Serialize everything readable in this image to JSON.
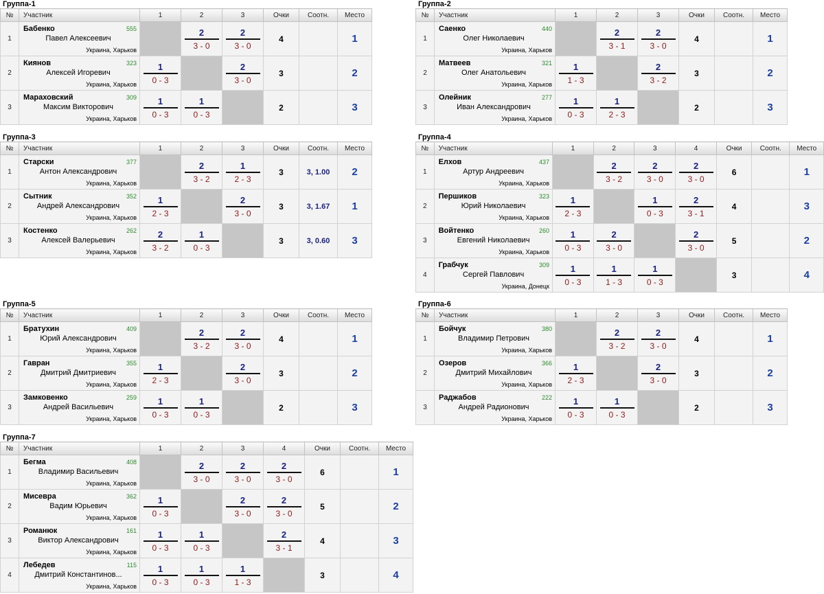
{
  "headers": {
    "num": "№",
    "participant": "Участник",
    "points": "Очки",
    "ratio": "Соотн.",
    "place": "Место"
  },
  "groups": [
    {
      "title": "Группа-1",
      "cols": [
        "1",
        "2",
        "3"
      ],
      "rows": [
        {
          "num": "1",
          "surname": "Бабенко",
          "firstname": "Павел Алексеевич",
          "rating": "555",
          "location": "Украина, Харьков",
          "results": [
            null,
            {
              "w": "2",
              "s": "3 - 0"
            },
            {
              "w": "2",
              "s": "3 - 0"
            }
          ],
          "points": "4",
          "ratio": "",
          "place": "1"
        },
        {
          "num": "2",
          "surname": "Киянов",
          "firstname": "Алексей Игоревич",
          "rating": "323",
          "location": "Украина, Харьков",
          "results": [
            {
              "w": "1",
              "s": "0 - 3"
            },
            null,
            {
              "w": "2",
              "s": "3 - 0"
            }
          ],
          "points": "3",
          "ratio": "",
          "place": "2"
        },
        {
          "num": "3",
          "surname": "Мараховский",
          "firstname": "Максим Викторович",
          "rating": "309",
          "location": "Украина, Харьков",
          "results": [
            {
              "w": "1",
              "s": "0 - 3"
            },
            {
              "w": "1",
              "s": "0 - 3"
            },
            null
          ],
          "points": "2",
          "ratio": "",
          "place": "3"
        }
      ]
    },
    {
      "title": "Группа-2",
      "cols": [
        "1",
        "2",
        "3"
      ],
      "rows": [
        {
          "num": "1",
          "surname": "Саенко",
          "firstname": "Олег Николаевич",
          "rating": "440",
          "location": "Украина, Харьков",
          "results": [
            null,
            {
              "w": "2",
              "s": "3 - 1"
            },
            {
              "w": "2",
              "s": "3 - 0"
            }
          ],
          "points": "4",
          "ratio": "",
          "place": "1"
        },
        {
          "num": "2",
          "surname": "Матвеев",
          "firstname": "Олег Анатольевич",
          "rating": "321",
          "location": "Украина, Харьков",
          "results": [
            {
              "w": "1",
              "s": "1 - 3"
            },
            null,
            {
              "w": "2",
              "s": "3 - 2"
            }
          ],
          "points": "3",
          "ratio": "",
          "place": "2"
        },
        {
          "num": "3",
          "surname": "Олейник",
          "firstname": "Иван Александрович",
          "rating": "277",
          "location": "Украина, Харьков",
          "results": [
            {
              "w": "1",
              "s": "0 - 3"
            },
            {
              "w": "1",
              "s": "2 - 3"
            },
            null
          ],
          "points": "2",
          "ratio": "",
          "place": "3"
        }
      ]
    },
    {
      "title": "Группа-3",
      "cols": [
        "1",
        "2",
        "3"
      ],
      "rows": [
        {
          "num": "1",
          "surname": "Старски",
          "firstname": "Антон Александрович",
          "rating": "377",
          "location": "Украина, Харьков",
          "results": [
            null,
            {
              "w": "2",
              "s": "3 - 2"
            },
            {
              "w": "1",
              "s": "2 - 3"
            }
          ],
          "points": "3",
          "ratio": "3, 1.00",
          "place": "2"
        },
        {
          "num": "2",
          "surname": "Сытник",
          "firstname": "Андрей Александрович",
          "rating": "352",
          "location": "Украина, Харьков",
          "results": [
            {
              "w": "1",
              "s": "2 - 3"
            },
            null,
            {
              "w": "2",
              "s": "3 - 0"
            }
          ],
          "points": "3",
          "ratio": "3, 1.67",
          "place": "1"
        },
        {
          "num": "3",
          "surname": "Костенко",
          "firstname": "Алексей Валерьевич",
          "rating": "262",
          "location": "Украина, Харьков",
          "results": [
            {
              "w": "2",
              "s": "3 - 2"
            },
            {
              "w": "1",
              "s": "0 - 3"
            },
            null
          ],
          "points": "3",
          "ratio": "3, 0.60",
          "place": "3"
        }
      ]
    },
    {
      "title": "Группа-4",
      "cols": [
        "1",
        "2",
        "3",
        "4"
      ],
      "rows": [
        {
          "num": "1",
          "surname": "Елхов",
          "firstname": "Артур Андреевич",
          "rating": "437",
          "location": "Украина, Харьков",
          "results": [
            null,
            {
              "w": "2",
              "s": "3 - 2"
            },
            {
              "w": "2",
              "s": "3 - 0"
            },
            {
              "w": "2",
              "s": "3 - 0"
            }
          ],
          "points": "6",
          "ratio": "",
          "place": "1"
        },
        {
          "num": "2",
          "surname": "Першиков",
          "firstname": "Юрий Николаевич",
          "rating": "323",
          "location": "Украина, Харьков",
          "results": [
            {
              "w": "1",
              "s": "2 - 3"
            },
            null,
            {
              "w": "1",
              "s": "0 - 3"
            },
            {
              "w": "2",
              "s": "3 - 1"
            }
          ],
          "points": "4",
          "ratio": "",
          "place": "3"
        },
        {
          "num": "3",
          "surname": "Войтенко",
          "firstname": "Евгений Николаевич",
          "rating": "260",
          "location": "Украина, Харьков",
          "results": [
            {
              "w": "1",
              "s": "0 - 3"
            },
            {
              "w": "2",
              "s": "3 - 0"
            },
            null,
            {
              "w": "2",
              "s": "3 - 0"
            }
          ],
          "points": "5",
          "ratio": "",
          "place": "2"
        },
        {
          "num": "4",
          "surname": "Грабчук",
          "firstname": "Сергей Павлович",
          "rating": "309",
          "location": "Украина, Донецк",
          "results": [
            {
              "w": "1",
              "s": "0 - 3"
            },
            {
              "w": "1",
              "s": "1 - 3"
            },
            {
              "w": "1",
              "s": "0 - 3"
            },
            null
          ],
          "points": "3",
          "ratio": "",
          "place": "4"
        }
      ]
    },
    {
      "title": "Группа-5",
      "cols": [
        "1",
        "2",
        "3"
      ],
      "rows": [
        {
          "num": "1",
          "surname": "Братухин",
          "firstname": "Юрий Александрович",
          "rating": "409",
          "location": "Украина, Харьков",
          "results": [
            null,
            {
              "w": "2",
              "s": "3 - 2"
            },
            {
              "w": "2",
              "s": "3 - 0"
            }
          ],
          "points": "4",
          "ratio": "",
          "place": "1"
        },
        {
          "num": "2",
          "surname": "Гавран",
          "firstname": "Дмитрий Дмитриевич",
          "rating": "355",
          "location": "Украина, Харьков",
          "results": [
            {
              "w": "1",
              "s": "2 - 3"
            },
            null,
            {
              "w": "2",
              "s": "3 - 0"
            }
          ],
          "points": "3",
          "ratio": "",
          "place": "2"
        },
        {
          "num": "3",
          "surname": "Замковенко",
          "firstname": "Андрей Васильевич",
          "rating": "259",
          "location": "Украина, Харьков",
          "results": [
            {
              "w": "1",
              "s": "0 - 3"
            },
            {
              "w": "1",
              "s": "0 - 3"
            },
            null
          ],
          "points": "2",
          "ratio": "",
          "place": "3"
        }
      ]
    },
    {
      "title": "Группа-6",
      "cols": [
        "1",
        "2",
        "3"
      ],
      "rows": [
        {
          "num": "1",
          "surname": "Бойчук",
          "firstname": "Владимир Петрович",
          "rating": "380",
          "location": "Украина, Харьков",
          "results": [
            null,
            {
              "w": "2",
              "s": "3 - 2"
            },
            {
              "w": "2",
              "s": "3 - 0"
            }
          ],
          "points": "4",
          "ratio": "",
          "place": "1"
        },
        {
          "num": "2",
          "surname": "Озеров",
          "firstname": "Дмитрий Михайлович",
          "rating": "366",
          "location": "Украина, Харьков",
          "results": [
            {
              "w": "1",
              "s": "2 - 3"
            },
            null,
            {
              "w": "2",
              "s": "3 - 0"
            }
          ],
          "points": "3",
          "ratio": "",
          "place": "2"
        },
        {
          "num": "3",
          "surname": "Раджабов",
          "firstname": "Андрей Радионович",
          "rating": "222",
          "location": "Украина, Харьков",
          "results": [
            {
              "w": "1",
              "s": "0 - 3"
            },
            {
              "w": "1",
              "s": "0 - 3"
            },
            null
          ],
          "points": "2",
          "ratio": "",
          "place": "3"
        }
      ]
    },
    {
      "title": "Группа-7",
      "cols": [
        "1",
        "2",
        "3",
        "4"
      ],
      "rows": [
        {
          "num": "1",
          "surname": "Бегма",
          "firstname": "Владимир Васильевич",
          "rating": "408",
          "location": "Украина, Харьков",
          "results": [
            null,
            {
              "w": "2",
              "s": "3 - 0"
            },
            {
              "w": "2",
              "s": "3 - 0"
            },
            {
              "w": "2",
              "s": "3 - 0"
            }
          ],
          "points": "6",
          "ratio": "",
          "place": "1"
        },
        {
          "num": "2",
          "surname": "Мисевра",
          "firstname": "Вадим Юрьевич",
          "rating": "362",
          "location": "Украина, Харьков",
          "results": [
            {
              "w": "1",
              "s": "0 - 3"
            },
            null,
            {
              "w": "2",
              "s": "3 - 0"
            },
            {
              "w": "2",
              "s": "3 - 0"
            }
          ],
          "points": "5",
          "ratio": "",
          "place": "2"
        },
        {
          "num": "3",
          "surname": "Романюк",
          "firstname": "Виктор Александрович",
          "rating": "161",
          "location": "Украина, Харьков",
          "results": [
            {
              "w": "1",
              "s": "0 - 3"
            },
            {
              "w": "1",
              "s": "0 - 3"
            },
            null,
            {
              "w": "2",
              "s": "3 - 1"
            }
          ],
          "points": "4",
          "ratio": "",
          "place": "3"
        },
        {
          "num": "4",
          "surname": "Лебедев",
          "firstname": "Дмитрий Константинов...",
          "rating": "115",
          "location": "Украина, Харьков",
          "results": [
            {
              "w": "1",
              "s": "0 - 3"
            },
            {
              "w": "1",
              "s": "0 - 3"
            },
            {
              "w": "1",
              "s": "1 - 3"
            },
            null
          ],
          "points": "3",
          "ratio": "",
          "place": "4"
        }
      ]
    }
  ]
}
